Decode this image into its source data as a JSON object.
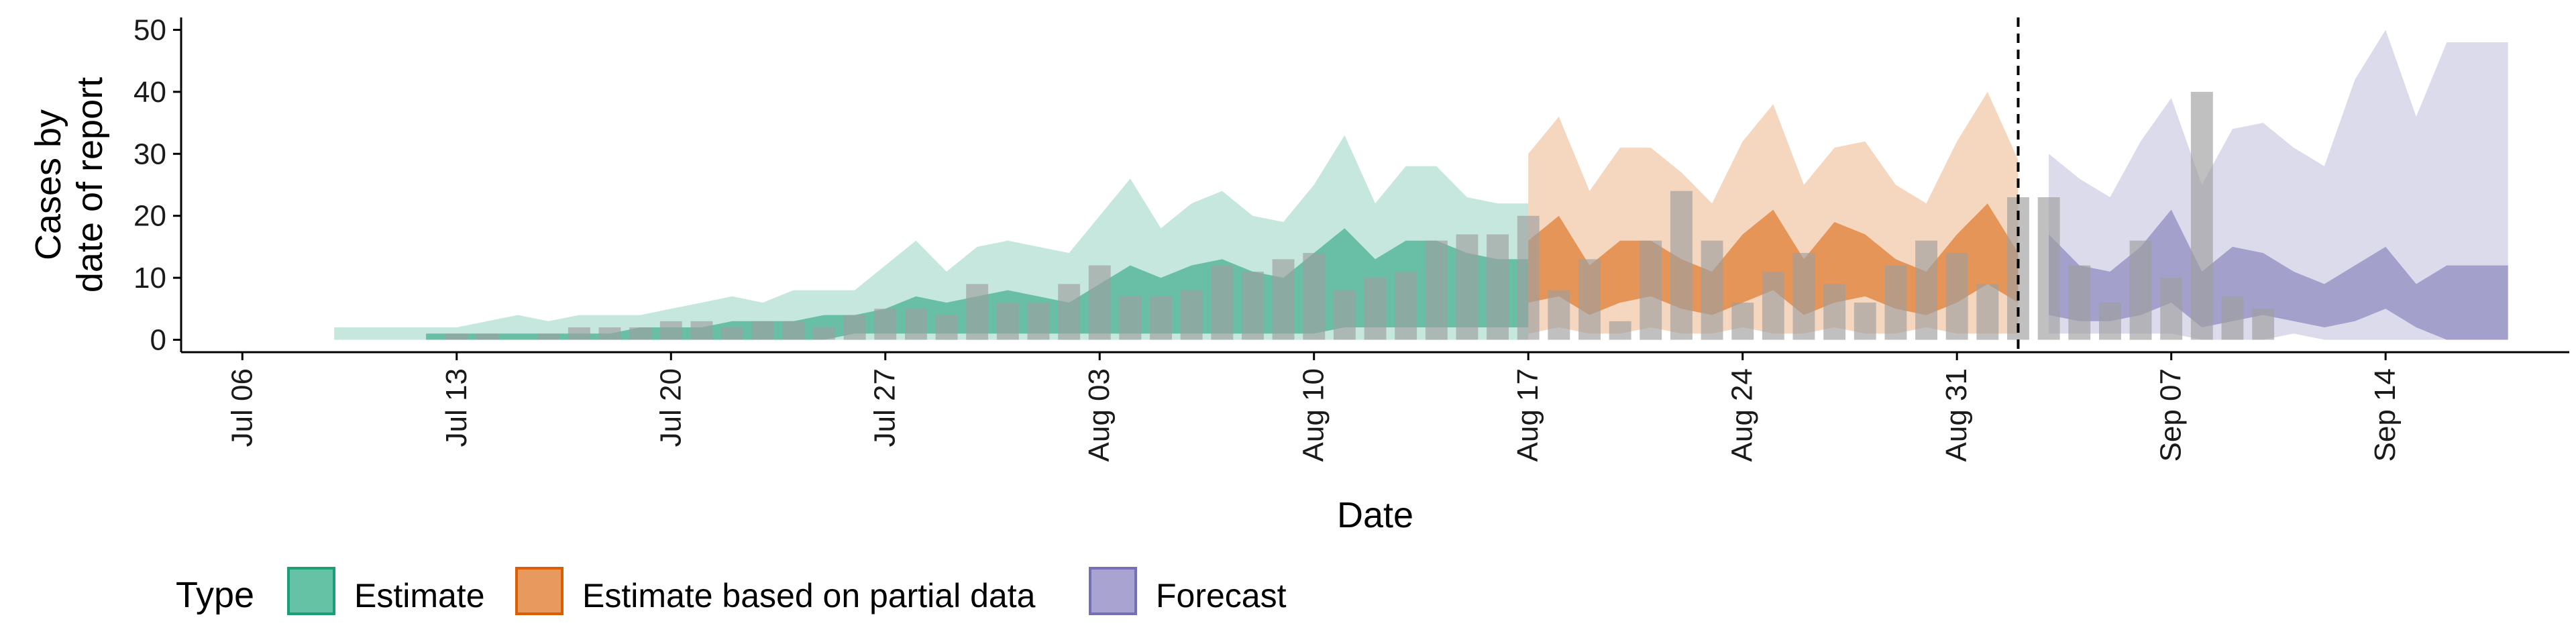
{
  "chart_data": {
    "type": "area",
    "xlabel": "Date",
    "ylabel_lines": [
      "Cases by",
      "date of report"
    ],
    "x_range": [
      "2020-07-04",
      "2020-09-20"
    ],
    "ylim": [
      -2,
      52
    ],
    "y_ticks": [
      0,
      10,
      20,
      30,
      40,
      50
    ],
    "x_ticks": [
      {
        "date": "2020-07-06",
        "label": "Jul 06"
      },
      {
        "date": "2020-07-13",
        "label": "Jul 13"
      },
      {
        "date": "2020-07-20",
        "label": "Jul 20"
      },
      {
        "date": "2020-07-27",
        "label": "Jul 27"
      },
      {
        "date": "2020-08-03",
        "label": "Aug 03"
      },
      {
        "date": "2020-08-10",
        "label": "Aug 10"
      },
      {
        "date": "2020-08-17",
        "label": "Aug 17"
      },
      {
        "date": "2020-08-24",
        "label": "Aug 24"
      },
      {
        "date": "2020-08-31",
        "label": "Aug 31"
      },
      {
        "date": "2020-09-07",
        "label": "Sep 07"
      },
      {
        "date": "2020-09-14",
        "label": "Sep 14"
      }
    ],
    "forecast_start_line": "2020-09-02",
    "legend": {
      "title": "Type",
      "position": "bottom",
      "entries": [
        {
          "label": "Estimate",
          "fill": "#66c2a5",
          "stroke": "#1b9e77"
        },
        {
          "label": "Estimate based on partial data",
          "fill": "#e89a5e",
          "stroke": "#d95f02"
        },
        {
          "label": "Forecast",
          "fill": "#a9a3d1",
          "stroke": "#7570b3"
        }
      ]
    },
    "colors": {
      "estimate": "#1b9e77",
      "partial": "#d95f02",
      "forecast": "#7570b3",
      "bars": "#9e9e9e",
      "vline": "#000000"
    },
    "bars": {
      "start_date": "2020-07-13",
      "values": [
        1,
        1,
        0,
        1,
        2,
        2,
        2,
        3,
        3,
        2,
        3,
        3,
        2,
        4,
        5,
        5,
        4,
        9,
        6,
        6,
        9,
        12,
        7,
        7,
        8,
        12,
        11,
        13,
        14,
        8,
        10,
        11,
        16,
        17,
        17,
        20,
        8,
        13,
        3,
        16,
        24,
        16,
        6,
        11,
        14,
        9,
        6,
        12,
        16,
        14,
        9,
        23,
        23,
        12,
        6,
        16,
        10,
        40,
        7,
        5
      ]
    },
    "series": [
      {
        "name": "Estimate",
        "key": "estimate",
        "start_date": "2020-07-09",
        "outer_lower": [
          0,
          0,
          0,
          0,
          0,
          0,
          0,
          0,
          0,
          0,
          0,
          0,
          0,
          0,
          0,
          0,
          0,
          0,
          0,
          0,
          0,
          0,
          0,
          0,
          0,
          0,
          0,
          0,
          0,
          0,
          0,
          0,
          0,
          0,
          0,
          0,
          0,
          0,
          0,
          0
        ],
        "outer_upper": [
          2,
          2,
          2,
          2,
          2,
          3,
          4,
          3,
          4,
          4,
          4,
          5,
          6,
          7,
          6,
          8,
          8,
          8,
          12,
          16,
          11,
          15,
          16,
          15,
          14,
          20,
          26,
          18,
          22,
          24,
          20,
          19,
          25,
          33,
          22,
          28,
          28,
          23,
          22,
          22
        ],
        "inner_lower": [
          0,
          0,
          0,
          0,
          0,
          0,
          0,
          0,
          0,
          0,
          0,
          0,
          0,
          0,
          0,
          0,
          0,
          1,
          1,
          1,
          1,
          1,
          1,
          1,
          1,
          1,
          1,
          1,
          1,
          1,
          1,
          1,
          1,
          2,
          2,
          2,
          2,
          2,
          2,
          2
        ],
        "inner_upper": [
          null,
          null,
          null,
          1,
          1,
          1,
          1,
          1,
          1,
          1,
          2,
          2,
          2,
          3,
          3,
          3,
          4,
          4,
          5,
          7,
          6,
          7,
          8,
          7,
          6,
          9,
          12,
          10,
          12,
          13,
          11,
          10,
          14,
          18,
          13,
          16,
          16,
          14,
          13,
          13
        ]
      },
      {
        "name": "Estimate based on partial data",
        "key": "partial",
        "start_date": "2020-08-17",
        "outer_lower": [
          1,
          2,
          1,
          1,
          2,
          1,
          1,
          2,
          1,
          1,
          2,
          1,
          1,
          2,
          1,
          1,
          1
        ],
        "outer_upper": [
          30,
          36,
          24,
          31,
          31,
          27,
          22,
          32,
          38,
          25,
          31,
          32,
          25,
          22,
          32,
          40,
          29
        ],
        "inner_lower": [
          6,
          7,
          4,
          6,
          7,
          5,
          4,
          6,
          8,
          4,
          6,
          7,
          5,
          4,
          6,
          9,
          6
        ],
        "inner_upper": [
          16,
          20,
          12,
          16,
          16,
          13,
          11,
          17,
          21,
          13,
          19,
          17,
          13,
          11,
          17,
          22,
          14
        ]
      },
      {
        "name": "Forecast",
        "key": "forecast",
        "start_date": "2020-09-03",
        "outer_lower": [
          1,
          1,
          1,
          1,
          1,
          0,
          0,
          0,
          1,
          0,
          0,
          0,
          0,
          0,
          0,
          0
        ],
        "outer_upper": [
          30,
          26,
          23,
          32,
          39,
          25,
          34,
          35,
          31,
          28,
          42,
          50,
          36,
          48,
          48,
          48
        ],
        "inner_lower": [
          4,
          3,
          3,
          4,
          6,
          2,
          3,
          4,
          3,
          2,
          3,
          5,
          2,
          0,
          0,
          0
        ],
        "inner_upper": [
          17,
          12,
          11,
          15,
          21,
          11,
          15,
          14,
          11,
          9,
          12,
          15,
          9,
          12,
          12,
          12
        ]
      }
    ]
  }
}
